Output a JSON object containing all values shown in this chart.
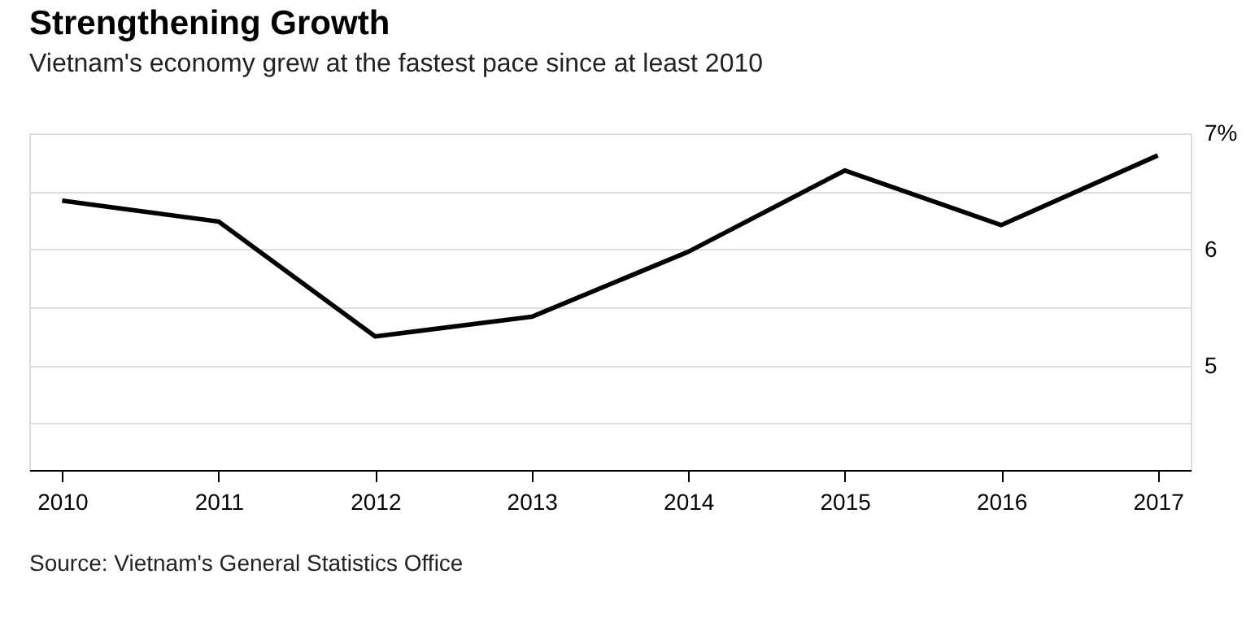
{
  "chart_data": {
    "type": "line",
    "title": "Strengthening Growth",
    "subtitle": "Vietnam's economy grew at the fastest pace since at least 2010",
    "categories": [
      "2010",
      "2011",
      "2012",
      "2013",
      "2014",
      "2015",
      "2016",
      "2017"
    ],
    "series": [
      {
        "color": "#000000",
        "values": [
          6.42,
          6.24,
          5.25,
          5.42,
          5.98,
          6.68,
          6.21,
          6.81
        ]
      }
    ],
    "ylim": [
      4.1,
      7.0
    ],
    "yticks": [
      {
        "value": 4.5,
        "label": null
      },
      {
        "value": 5,
        "label": "5"
      },
      {
        "value": 5.5,
        "label": null
      },
      {
        "value": 6,
        "label": "6"
      },
      {
        "value": 6.5,
        "label": null
      },
      {
        "value": 7,
        "label": "7%"
      }
    ],
    "grid": "y",
    "marker": "none",
    "line_style": "solid",
    "annotations": [
      "Source: Vietnam's General Statistics Office"
    ]
  }
}
